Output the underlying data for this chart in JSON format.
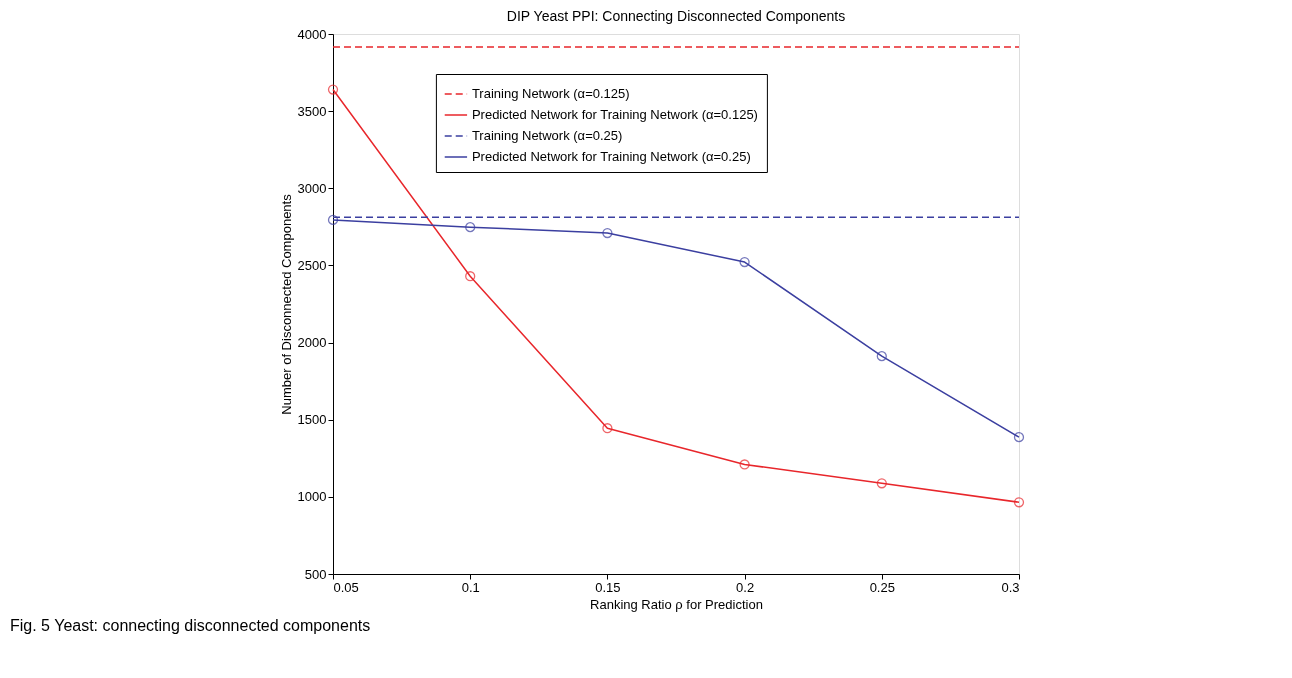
{
  "chart_data": {
    "type": "line",
    "title": "DIP Yeast PPI: Connecting Disconnected Components",
    "xlabel": "Ranking Ratio ρ for Prediction",
    "ylabel": "Number of Disconnected Components",
    "annotations": [
      "Fig. 5 Yeast: connecting disconnected components"
    ],
    "xlim": [
      0.05,
      0.3
    ],
    "xticks": [
      0.05,
      0.1,
      0.15,
      0.2,
      0.25,
      0.3
    ],
    "ylim": [
      500,
      4000
    ],
    "yticks": [
      500,
      1000,
      1500,
      2000,
      2500,
      3000,
      3500,
      4000
    ],
    "grid": false,
    "legend": "top",
    "series": [
      {
        "name": "Training Network (α=0.125)",
        "color": "#e8262b",
        "x": [
          0.05,
          0.3
        ],
        "values": [
          3915,
          3915
        ],
        "line_style": "dashed",
        "marker": "none"
      },
      {
        "name": "Predicted Network for Training Network (α=0.125)",
        "color": "#e8262b",
        "x": [
          0.05,
          0.1,
          0.15,
          0.2,
          0.25,
          0.3
        ],
        "values": [
          3640,
          2430,
          1445,
          1210,
          1088,
          965
        ],
        "line_style": "solid",
        "marker": "circle"
      },
      {
        "name": "Training Network (α=0.25)",
        "color": "#3b3fa0",
        "x": [
          0.05,
          0.3
        ],
        "values": [
          2812,
          2812
        ],
        "line_style": "dashed",
        "marker": "none"
      },
      {
        "name": "Predicted Network for Training Network (α=0.25)",
        "color": "#3b3fa0",
        "x": [
          0.05,
          0.1,
          0.15,
          0.2,
          0.25,
          0.3
        ],
        "values": [
          2795,
          2748,
          2710,
          2522,
          1912,
          1387
        ],
        "line_style": "solid",
        "marker": "circle"
      }
    ]
  }
}
